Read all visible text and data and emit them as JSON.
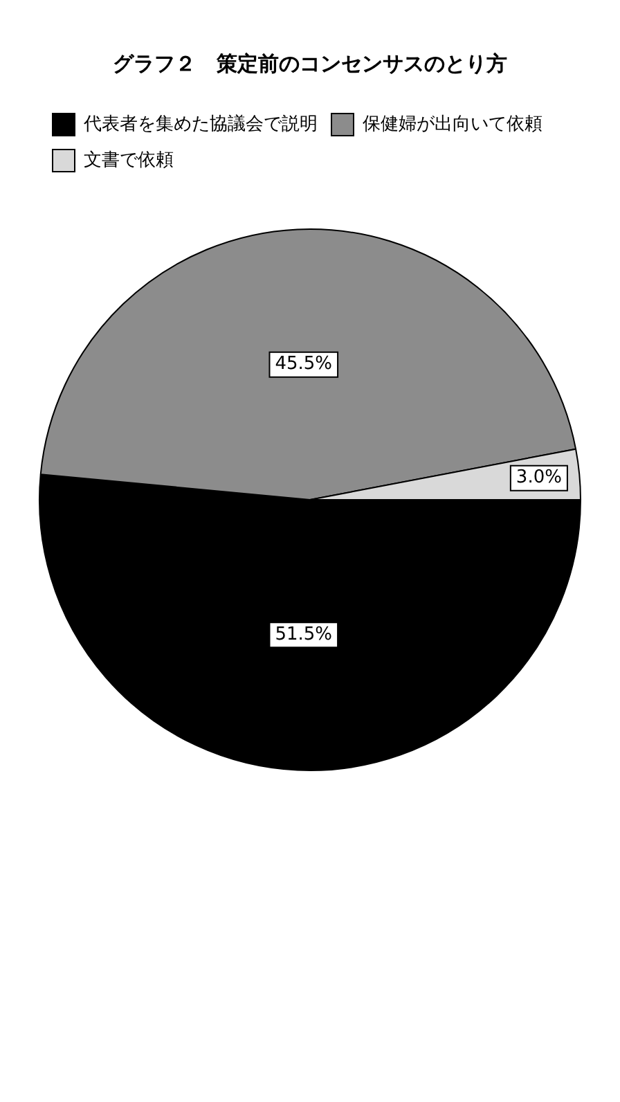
{
  "chart_data": {
    "type": "pie",
    "title": "グラフ２　策定前のコンセンサスのとり方",
    "categories": [
      "代表者を集めた協議会で説明",
      "保健婦が出向いて依頼",
      "文書で依頼"
    ],
    "values": [
      51.5,
      45.5,
      3.0
    ],
    "colors": [
      "#000000",
      "#8c8c8c",
      "#d9d9d9"
    ],
    "value_labels": [
      "51.5%",
      "45.5%",
      "3.0%"
    ],
    "legend": "top left"
  }
}
